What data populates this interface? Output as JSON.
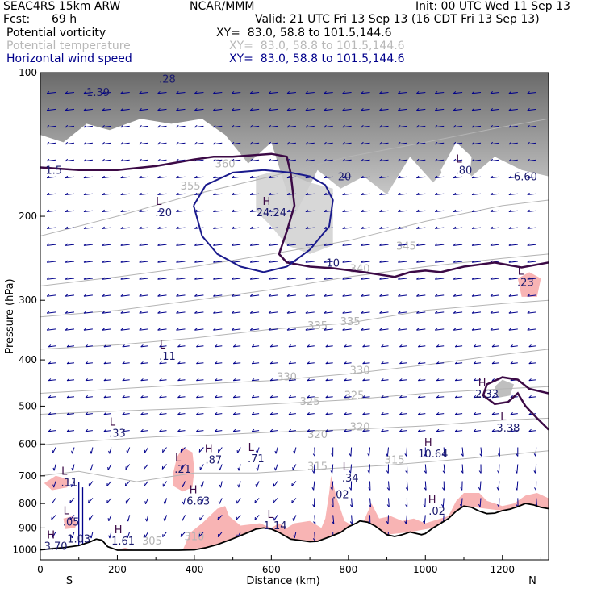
{
  "header": {
    "model": "SEAC4RS 15km ARW",
    "org": "NCAR/MMM",
    "init": "Init: 00 UTC Wed 11 Sep 13",
    "fcst_label": "Fcst:",
    "fcst_value": "69 h",
    "valid": "Valid: 21 UTC Fri 13 Sep 13 (16 CDT Fri 13 Sep 13)"
  },
  "fields": [
    {
      "name": "Potential vorticity",
      "xy": "XY=  83.0, 58.8 to 101.5,144.6",
      "color": "#000000"
    },
    {
      "name": "Potential temperature",
      "xy": "XY=  83.0, 58.8 to 101.5,144.6",
      "color": "#b8b8b8"
    },
    {
      "name": "Horizontal wind speed",
      "xy": "XY=  83.0, 58.8 to 101.5,144.6",
      "color": "#00008b"
    }
  ],
  "colors": {
    "pv_contour": "#3c0a46",
    "pv_fill_low": "#f8b4b4",
    "pv_fill_high": "#4a4a4a",
    "theta": "#b4b4b4",
    "wind": "#00008b",
    "terrain": "#000000"
  },
  "chart_data": {
    "type": "vertical cross-section",
    "xlabel": "Distance (km)",
    "ylabel": "Pressure (hPa)",
    "x_ticks": [
      "0",
      "200",
      "400",
      "600",
      "800",
      "1000",
      "1200"
    ],
    "y_ticks": [
      "100",
      "200",
      "300",
      "400",
      "500",
      "600",
      "700",
      "800",
      "900",
      "1000"
    ],
    "xlim": [
      0,
      1320
    ],
    "ylim": [
      1050,
      100
    ],
    "y_scale": "log-pressure",
    "endpoints": {
      "left": "S",
      "right": "N"
    },
    "theta_contours": [
      {
        "value": 315,
        "points": [
          [
            0,
            700
          ],
          [
            100,
            685
          ],
          [
            250,
            720
          ],
          [
            400,
            690
          ],
          [
            560,
            690
          ],
          [
            760,
            675
          ],
          [
            900,
            665
          ],
          [
            1100,
            645
          ],
          [
            1320,
            620
          ]
        ]
      },
      {
        "value": 320,
        "points": [
          [
            0,
            603
          ],
          [
            150,
            590
          ],
          [
            300,
            580
          ],
          [
            450,
            575
          ],
          [
            600,
            567
          ],
          [
            800,
            560
          ],
          [
            1000,
            550
          ],
          [
            1200,
            535
          ],
          [
            1320,
            530
          ]
        ]
      },
      {
        "value": 325,
        "points": [
          [
            0,
            520
          ],
          [
            200,
            512
          ],
          [
            400,
            505
          ],
          [
            600,
            495
          ],
          [
            800,
            485
          ],
          [
            1000,
            470
          ],
          [
            1200,
            460
          ],
          [
            1320,
            455
          ]
        ]
      },
      {
        "value": 330,
        "points": [
          [
            0,
            470
          ],
          [
            200,
            460
          ],
          [
            400,
            450
          ],
          [
            600,
            442
          ],
          [
            800,
            428
          ],
          [
            1000,
            410
          ],
          [
            1200,
            390
          ],
          [
            1320,
            380
          ]
        ]
      },
      {
        "value": 335,
        "points": [
          [
            0,
            380
          ],
          [
            200,
            372
          ],
          [
            400,
            360
          ],
          [
            600,
            345
          ],
          [
            800,
            335
          ],
          [
            1000,
            315
          ],
          [
            1200,
            305
          ],
          [
            1320,
            300
          ]
        ]
      },
      {
        "value": 340,
        "points": [
          [
            0,
            325
          ],
          [
            200,
            315
          ],
          [
            400,
            300
          ],
          [
            600,
            285
          ],
          [
            800,
            268
          ],
          [
            1000,
            255
          ],
          [
            1200,
            245
          ],
          [
            1320,
            240
          ]
        ]
      },
      {
        "value": 345,
        "points": [
          [
            0,
            280
          ],
          [
            200,
            268
          ],
          [
            400,
            255
          ],
          [
            600,
            240
          ],
          [
            800,
            225
          ],
          [
            1000,
            205
          ],
          [
            1200,
            190
          ],
          [
            1320,
            185
          ]
        ]
      },
      {
        "value": 355,
        "points": [
          [
            0,
            220
          ],
          [
            200,
            200
          ],
          [
            400,
            180
          ],
          [
            600,
            165
          ],
          [
            800,
            150
          ],
          [
            1000,
            140
          ],
          [
            1200,
            130
          ],
          [
            1320,
            125
          ]
        ]
      }
    ],
    "theta_labels": [
      {
        "text": "315",
        "x": 720,
        "p": 680
      },
      {
        "text": "315",
        "x": 920,
        "p": 660
      },
      {
        "text": "320",
        "x": 720,
        "p": 583
      },
      {
        "text": "320",
        "x": 830,
        "p": 562
      },
      {
        "text": "325",
        "x": 700,
        "p": 497
      },
      {
        "text": "325",
        "x": 815,
        "p": 483
      },
      {
        "text": "330",
        "x": 640,
        "p": 442
      },
      {
        "text": "330",
        "x": 830,
        "p": 428
      },
      {
        "text": "335",
        "x": 720,
        "p": 345
      },
      {
        "text": "335",
        "x": 805,
        "p": 338
      },
      {
        "text": "340",
        "x": 830,
        "p": 262
      },
      {
        "text": "345",
        "x": 950,
        "p": 235
      },
      {
        "text": "355",
        "x": 390,
        "p": 176
      },
      {
        "text": "360",
        "x": 480,
        "p": 158
      },
      {
        "text": "305",
        "x": 290,
        "p": 975
      },
      {
        "text": "310",
        "x": 400,
        "p": 955
      }
    ],
    "pv_extrema": [
      {
        "kind": "",
        "value": "1.39",
        "x": 150,
        "p": 112
      },
      {
        "kind": "",
        "value": ".28",
        "x": 330,
        "p": 105
      },
      {
        "kind": "",
        "value": "1.5",
        "x": 35,
        "p": 163
      },
      {
        "kind": "L",
        "value": ".20",
        "x": 320,
        "p": 200
      },
      {
        "kind": "H",
        "value": "24.24",
        "x": 600,
        "p": 200
      },
      {
        "kind": "",
        "value": "20",
        "x": 790,
        "p": 168
      },
      {
        "kind": "",
        "value": "10",
        "x": 760,
        "p": 255
      },
      {
        "kind": "L",
        "value": ".80",
        "x": 1100,
        "p": 163
      },
      {
        "kind": "",
        "value": "6.60",
        "x": 1260,
        "p": 168
      },
      {
        "kind": "L",
        "value": ".23",
        "x": 1260,
        "p": 280
      },
      {
        "kind": "L",
        "value": ".11",
        "x": 330,
        "p": 400
      },
      {
        "kind": "H",
        "value": "2.33",
        "x": 1160,
        "p": 480
      },
      {
        "kind": "L",
        "value": "3.38",
        "x": 1215,
        "p": 565
      },
      {
        "kind": "L",
        "value": ".33",
        "x": 200,
        "p": 580
      },
      {
        "kind": "H",
        "value": ".87",
        "x": 450,
        "p": 660
      },
      {
        "kind": "L",
        "value": ".71",
        "x": 560,
        "p": 655
      },
      {
        "kind": "L",
        "value": ".21",
        "x": 370,
        "p": 690
      },
      {
        "kind": "H",
        "value": "10.64",
        "x": 1020,
        "p": 640
      },
      {
        "kind": "L",
        "value": ".34",
        "x": 805,
        "p": 720
      },
      {
        "kind": "L",
        "value": ".11",
        "x": 75,
        "p": 735
      },
      {
        "kind": "H",
        "value": "6.63",
        "x": 410,
        "p": 805
      },
      {
        "kind": "",
        "value": ".02",
        "x": 780,
        "p": 780
      },
      {
        "kind": "H",
        "value": ".02",
        "x": 1030,
        "p": 845
      },
      {
        "kind": "L",
        "value": ".05",
        "x": 80,
        "p": 890
      },
      {
        "kind": "L",
        "value": "1.14",
        "x": 610,
        "p": 905
      },
      {
        "kind": "",
        "value": "1.03",
        "x": 100,
        "p": 965
      },
      {
        "kind": "H",
        "value": "1.61",
        "x": 215,
        "p": 975
      },
      {
        "kind": "H",
        "value": "3.70",
        "x": 40,
        "p": 1000
      }
    ],
    "pv_2pvu_contour": [
      [
        0,
        158
      ],
      [
        100,
        160
      ],
      [
        200,
        160
      ],
      [
        300,
        157
      ],
      [
        400,
        152
      ],
      [
        450,
        150
      ],
      [
        500,
        150
      ],
      [
        600,
        148
      ],
      [
        640,
        150
      ],
      [
        650,
        162
      ],
      [
        660,
        190
      ],
      [
        640,
        215
      ],
      [
        620,
        240
      ],
      [
        640,
        250
      ],
      [
        700,
        255
      ],
      [
        760,
        257
      ],
      [
        840,
        262
      ],
      [
        920,
        268
      ],
      [
        960,
        262
      ],
      [
        1000,
        260
      ],
      [
        1040,
        262
      ],
      [
        1100,
        255
      ],
      [
        1180,
        250
      ],
      [
        1250,
        256
      ],
      [
        1320,
        250
      ]
    ],
    "jet_contour_20": [
      [
        398,
        190
      ],
      [
        430,
        172
      ],
      [
        500,
        162
      ],
      [
        580,
        160
      ],
      [
        650,
        162
      ],
      [
        700,
        165
      ],
      [
        740,
        172
      ],
      [
        760,
        185
      ],
      [
        750,
        210
      ],
      [
        700,
        235
      ],
      [
        640,
        255
      ],
      [
        580,
        262
      ],
      [
        520,
        255
      ],
      [
        460,
        240
      ],
      [
        420,
        220
      ],
      [
        398,
        190
      ]
    ],
    "terrain": [
      [
        0,
        1000
      ],
      [
        60,
        990
      ],
      [
        100,
        980
      ],
      [
        130,
        962
      ],
      [
        145,
        950
      ],
      [
        160,
        955
      ],
      [
        175,
        985
      ],
      [
        200,
        1002
      ],
      [
        300,
        1002
      ],
      [
        360,
        1002
      ],
      [
        400,
        1000
      ],
      [
        430,
        990
      ],
      [
        460,
        975
      ],
      [
        500,
        948
      ],
      [
        540,
        920
      ],
      [
        560,
        905
      ],
      [
        580,
        900
      ],
      [
        600,
        905
      ],
      [
        620,
        920
      ],
      [
        650,
        950
      ],
      [
        700,
        962
      ],
      [
        720,
        960
      ],
      [
        750,
        940
      ],
      [
        780,
        920
      ],
      [
        800,
        895
      ],
      [
        820,
        880
      ],
      [
        830,
        870
      ],
      [
        850,
        875
      ],
      [
        870,
        892
      ],
      [
        900,
        930
      ],
      [
        920,
        938
      ],
      [
        940,
        930
      ],
      [
        960,
        918
      ],
      [
        990,
        930
      ],
      [
        1000,
        925
      ],
      [
        1020,
        900
      ],
      [
        1040,
        880
      ],
      [
        1060,
        860
      ],
      [
        1080,
        830
      ],
      [
        1100,
        810
      ],
      [
        1120,
        815
      ],
      [
        1140,
        830
      ],
      [
        1160,
        840
      ],
      [
        1180,
        838
      ],
      [
        1200,
        828
      ],
      [
        1220,
        822
      ],
      [
        1240,
        812
      ],
      [
        1260,
        800
      ],
      [
        1280,
        805
      ],
      [
        1300,
        815
      ],
      [
        1320,
        820
      ]
    ]
  }
}
